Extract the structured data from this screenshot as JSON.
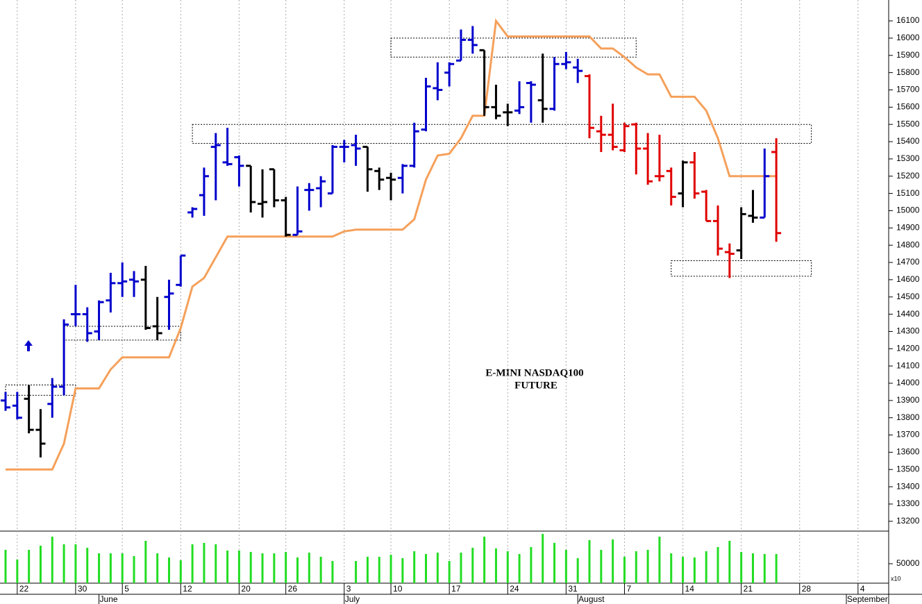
{
  "chart_data": {
    "type": "ohlc",
    "annotation": [
      "E-MINI NASDAQ100",
      "FUTURE"
    ],
    "categories": [
      null,
      "22",
      null,
      null,
      null,
      null,
      "30",
      null,
      null,
      null,
      "5",
      null,
      null,
      null,
      null,
      "12",
      null,
      null,
      null,
      null,
      "20",
      null,
      null,
      null,
      "26",
      null,
      null,
      null,
      null,
      "3",
      null,
      null,
      null,
      "10",
      null,
      null,
      null,
      null,
      "17",
      null,
      null,
      null,
      null,
      "24",
      null,
      null,
      null,
      null,
      "31",
      null,
      null,
      null,
      null,
      "7",
      null,
      null,
      null,
      null,
      "14",
      null,
      null,
      null,
      null,
      "21",
      null,
      null,
      null,
      null,
      "28",
      null,
      null,
      null,
      null,
      "4",
      null,
      null
    ],
    "month_labels": [
      null,
      null,
      null,
      null,
      null,
      null,
      null,
      null,
      "June",
      null,
      null,
      null,
      null,
      null,
      null,
      null,
      null,
      null,
      null,
      null,
      null,
      null,
      null,
      null,
      null,
      null,
      null,
      null,
      null,
      "July",
      null,
      null,
      null,
      null,
      null,
      null,
      null,
      null,
      null,
      null,
      null,
      null,
      null,
      null,
      null,
      null,
      null,
      null,
      null,
      "August",
      null,
      null,
      null,
      null,
      null,
      null,
      null,
      null,
      null,
      null,
      null,
      null,
      null,
      null,
      null,
      null,
      null,
      null,
      null,
      null,
      null,
      null,
      "September",
      null,
      null,
      null
    ],
    "open": [
      13900,
      13870,
      13910,
      13730,
      13880,
      13980,
      14400,
      14400,
      14300,
      14480,
      14580,
      14600,
      14600,
      14330,
      14500,
      14570,
      14990,
      15090,
      15370,
      15280,
      15310,
      15260,
      15040,
      15240,
      15060,
      14860,
      15120,
      15130,
      15100,
      15370,
      15380,
      15370,
      15230,
      15190,
      15190,
      15260,
      15470,
      15710,
      15800,
      15870,
      15990,
      15930,
      15600,
      15570,
      15580,
      15740,
      15640,
      15590,
      15850,
      15830,
      15780,
      15460,
      15440,
      15350,
      15500,
      15360,
      15200,
      15230,
      15100,
      15280,
      15110,
      14940,
      14760,
      14770,
      14970,
      14960,
      15340,
      null,
      null,
      null,
      null,
      null,
      null,
      null,
      null,
      null
    ],
    "high": [
      13950,
      13950,
      13990,
      13850,
      14030,
      14370,
      14570,
      14440,
      14480,
      14640,
      14700,
      14650,
      14680,
      14500,
      14600,
      14740,
      15020,
      15250,
      15450,
      15480,
      15320,
      15260,
      15240,
      15240,
      15080,
      15140,
      15160,
      15200,
      15380,
      15410,
      15440,
      15370,
      15250,
      15220,
      15270,
      15510,
      15770,
      15860,
      15860,
      16050,
      16070,
      15930,
      15730,
      15620,
      15750,
      15750,
      15910,
      15890,
      15920,
      15880,
      15790,
      15550,
      15620,
      15510,
      15510,
      15450,
      15440,
      15250,
      15290,
      15340,
      15120,
      15030,
      14810,
      15020,
      15120,
      15360,
      15420,
      null,
      null,
      null,
      null,
      null,
      null,
      null,
      null,
      null
    ],
    "low": [
      13840,
      13790,
      13710,
      13570,
      13800,
      13930,
      14330,
      14240,
      14250,
      14410,
      14500,
      14500,
      14310,
      14250,
      14310,
      14560,
      14960,
      14970,
      15060,
      15260,
      15140,
      14990,
      14960,
      15020,
      14850,
      14860,
      15000,
      15020,
      15100,
      15280,
      15260,
      15110,
      15120,
      15060,
      15100,
      15250,
      15460,
      15640,
      15720,
      15870,
      15910,
      15550,
      15530,
      15490,
      15560,
      15510,
      15510,
      15580,
      15820,
      15740,
      15420,
      15340,
      15350,
      15340,
      15210,
      15150,
      15170,
      15030,
      15020,
      15070,
      14940,
      14740,
      14610,
      14720,
      14930,
      14960,
      14820,
      null,
      null,
      null,
      null,
      null,
      null,
      null,
      null,
      null
    ],
    "close": [
      13860,
      13800,
      13730,
      13650,
      13980,
      14340,
      14400,
      14290,
      14470,
      14580,
      14590,
      14590,
      14320,
      14290,
      14520,
      14740,
      15010,
      15200,
      15380,
      15270,
      15260,
      15050,
      15050,
      15060,
      14860,
      14880,
      15120,
      15170,
      15370,
      15370,
      15360,
      15240,
      15180,
      15180,
      15260,
      15460,
      15720,
      15700,
      15850,
      15990,
      15960,
      15600,
      15550,
      15570,
      15600,
      15730,
      15590,
      15850,
      15860,
      15810,
      15480,
      15440,
      15370,
      15490,
      15360,
      15170,
      15200,
      15080,
      15280,
      15100,
      14940,
      14780,
      14750,
      14980,
      14960,
      15200,
      14870,
      null,
      null,
      null,
      null,
      null,
      null,
      null,
      null,
      null
    ],
    "bar_colors": [
      "#0000cc",
      "#0000cc",
      "#000000",
      "#000000",
      "#0000cc",
      "#0000cc",
      "#0000cc",
      "#0000cc",
      "#0000cc",
      "#0000cc",
      "#0000cc",
      "#0000cc",
      "#000000",
      "#000000",
      "#0000cc",
      "#0000cc",
      "#0000cc",
      "#0000cc",
      "#0000cc",
      "#0000cc",
      "#0000cc",
      "#000000",
      "#000000",
      "#000000",
      "#000000",
      "#0000cc",
      "#0000cc",
      "#0000cc",
      "#0000cc",
      "#0000cc",
      "#0000cc",
      "#000000",
      "#000000",
      "#000000",
      "#0000cc",
      "#0000cc",
      "#0000cc",
      "#0000cc",
      "#0000cc",
      "#0000cc",
      "#0000cc",
      "#000000",
      "#000000",
      "#000000",
      "#0000cc",
      "#0000cc",
      "#000000",
      "#0000cc",
      "#0000cc",
      "#0000cc",
      "#e00000",
      "#e00000",
      "#e00000",
      "#e00000",
      "#e00000",
      "#e00000",
      "#e00000",
      "#e00000",
      "#000000",
      "#e00000",
      "#e00000",
      "#e00000",
      "#e00000",
      "#000000",
      "#000000",
      "#0000cc",
      "#e00000",
      null,
      null,
      null,
      null,
      null,
      null,
      null,
      null,
      null
    ],
    "ylim": [
      13143,
      16221
    ],
    "yticks": [
      13200,
      13300,
      13400,
      13500,
      13600,
      13700,
      13800,
      13900,
      14000,
      14100,
      14200,
      14300,
      14400,
      14500,
      14600,
      14700,
      14800,
      14900,
      15000,
      15100,
      15200,
      15300,
      15400,
      15500,
      15600,
      15700,
      15800,
      15900,
      16000,
      16100
    ],
    "line": {
      "color": "#f5a05a",
      "values": [
        13500,
        13500,
        13500,
        13500,
        13500,
        13650,
        13970,
        13970,
        13970,
        14080,
        14150,
        14150,
        14150,
        14150,
        14150,
        14320,
        14560,
        14610,
        14730,
        14850,
        14850,
        14850,
        14850,
        14850,
        14850,
        14850,
        14850,
        14850,
        14850,
        14880,
        14890,
        14890,
        14890,
        14890,
        14890,
        14950,
        15180,
        15320,
        15330,
        15420,
        15550,
        15550,
        16100,
        16010,
        16010,
        16010,
        16010,
        16010,
        16010,
        16010,
        16010,
        15940,
        15940,
        15890,
        15830,
        15790,
        15790,
        15660,
        15660,
        15660,
        15580,
        15420,
        15200,
        15200,
        15200,
        15200,
        15200,
        null,
        null,
        null,
        null,
        null,
        null,
        null,
        null,
        null
      ]
    },
    "zones": [
      {
        "from": 0,
        "to": 6,
        "top": 13990,
        "bottom": 13930
      },
      {
        "from": 5,
        "to": 15,
        "top": 14330,
        "bottom": 14250
      },
      {
        "from": 16,
        "to": 69,
        "top": 15500,
        "bottom": 15390
      },
      {
        "from": 33,
        "to": 54,
        "top": 16000,
        "bottom": 15890
      },
      {
        "from": 57,
        "to": 69,
        "top": 14710,
        "bottom": 14620
      }
    ],
    "volume": {
      "type": "bar",
      "color": "#22dd22",
      "multiplier_label": "x10",
      "ylim": [
        0,
        133900
      ],
      "yticks": [
        50000
      ],
      "values": [
        85700,
        60700,
        85700,
        96400,
        119600,
        100000,
        100000,
        91100,
        76800,
        76800,
        76800,
        69600,
        108900,
        76800,
        66100,
        58900,
        100000,
        103600,
        100000,
        83900,
        83900,
        80400,
        76800,
        76800,
        80400,
        66100,
        78600,
        67900,
        57100,
        null,
        57100,
        67900,
        67900,
        73200,
        64300,
        82100,
        75000,
        78600,
        57100,
        78600,
        91100,
        119600,
        89300,
        82100,
        75000,
        92900,
        126800,
        103600,
        85700,
        64300,
        110700,
        85700,
        112500,
        67900,
        82100,
        85700,
        119600,
        76800,
        67900,
        66100,
        82100,
        92900,
        108900,
        80400,
        76800,
        75000,
        75000,
        null,
        null,
        null,
        null,
        null,
        null,
        null,
        null,
        null
      ]
    }
  }
}
